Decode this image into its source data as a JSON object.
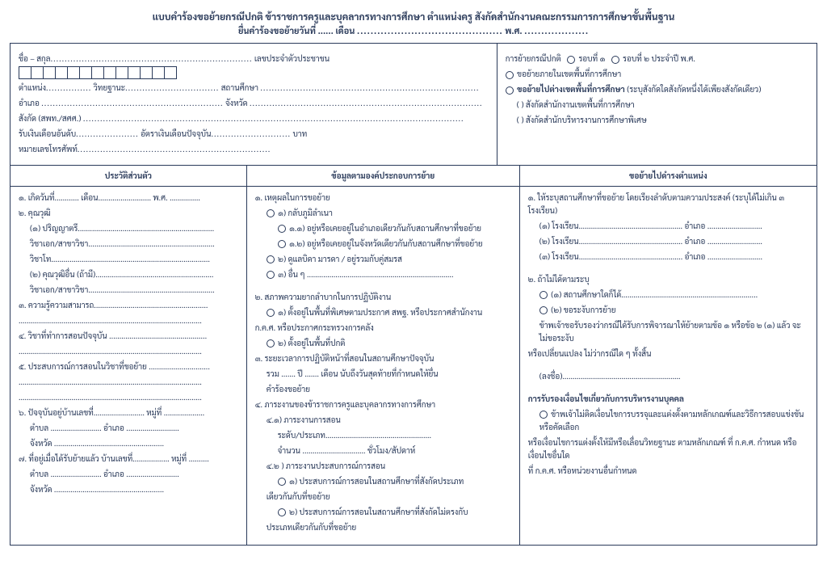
{
  "header": {
    "title": "แบบคำร้องขอย้ายกรณีปกติ ข้าราชการครูและบุคลากรทางการศึกษา ตำแหน่งครู สังกัดสำนักงานคณะกรรมการการศึกษาขั้นพื้นฐาน",
    "subtitle_pre": "ยื่นคำร้องขอย้ายวันที่ ......  เดือน ",
    "subtitle_dots": "...........................................",
    "subtitle_mid": " พ.ศ. ",
    "subtitle_dots2": "..................."
  },
  "top_left": {
    "l1a": "ชื่อ – สกุล",
    "l1b": " เลขประจำตัวประชาชน ",
    "l2a": "ตำแหน่ง",
    "l2b": " วิทยฐานะ",
    "l2c": " สถานศึกษา ",
    "l3a": "อำเภอ ",
    "l3b": " จังหวัด ",
    "l4": "สังกัด (สพท./สศศ.) ",
    "l5a": "รับเงินเดือนอันดับ",
    "l5b": " อัตราเงินเดือนปัจจุบัน",
    "l5c": "บาท",
    "l6": "หมายเลขโทรศัพท์"
  },
  "top_right": {
    "r1a": "การย้ายกรณีปกติ",
    "r1b": "รอบที่ ๑",
    "r1c": "รอบที่ ๒  ประจำปี พ.ศ.",
    "r2": "ขอย้ายภายในเขตพื้นที่การศึกษา",
    "r3": "ขอย้ายไปต่างเขตพื้นที่การศึกษา",
    "r3b": " (ระบุสังกัดใดสังกัดหนึ่งได้เพียงสังกัดเดียว)",
    "r4": "(  ) สังกัดสำนักงานเขตพื้นที่การศึกษา",
    "r5": "(  ) สังกัดสำนักบริหารงานการศึกษาพิเศษ"
  },
  "col1": {
    "head": "ประวัติส่วนตัว",
    "i1": "๑. เกิดวันที่............ เดือน.......................... พ.ศ. ...............",
    "i2": "๒. คุณวุฒิ",
    "i2a": "(๑) ปริญญาตรี...................................................................",
    "i2b": "วิชาเอก/สาขาวิชา..............................................................",
    "i2c": "วิชาโท..............................................................................",
    "i2d": "(๒) คุณวุฒิอื่น (ถ้ามี)..........................................................",
    "i2e": "วิชาเอก/สาขาวิชา..............................................................",
    "i3": "๓. ความรู้ความสามารถ........................................................",
    "i3b": "..........................................................................................",
    "i4": "๔. วิชาที่ทำการสอนปัจจุบัน ................................................",
    "i4b": "..........................................................................................",
    "i5": "๕. ประสบการณ์การสอนในวิชาที่ขอย้าย ..............................",
    "i5b": "..........................................................................................",
    "i5c": "..........................................................................................",
    "i6a": "๖. ปัจจุบันอยู่บ้านเลขที่......................... หมู่ที่ ....................",
    "i6b": "ตำบล ......................... อำเภอ ..........................",
    "i6c": "จังหวัด ......................................................",
    "i7a": "๗. ที่อยู่เมื่อได้รับย้ายแล้ว บ้านเลขที่.................. หมู่ที่ ..........",
    "i7b": "ตำบล ......................... อำเภอ ..........................",
    "i7c": "จังหวัด ......................................................"
  },
  "col2": {
    "head": "ข้อมูลตามองค์ประกอบการย้าย",
    "s1": "๑. เหตุผลในการขอย้าย",
    "s1a": "๑) กลับภูมิลำเนา",
    "s1a1": "๑.๑) อยู่หรือเคยอยู่ในอำเภอเดียวกันกับสถานศึกษาที่ขอย้าย",
    "s1a2": "๑.๒) อยู่หรือเคยอยู่ในจังหวัดเดียวกันกับสถานศึกษาที่ขอย้าย",
    "s1b": "๒) ดูแลบิดา มารดา / อยู่รวมกับคู่สมรส",
    "s1c": "๓) อื่น ๆ ........................................................................",
    "s2": "๒. สภาพความยากลำบากในการปฏิบัติงาน",
    "s2a": "๑) ตั้งอยู่ในพื้นที่พิเศษตามประกาศ สพฐ. หรือประกาศสำนักงาน",
    "s2a2": "ก.ค.ศ. หรือประกาศกระทรวงการคลัง",
    "s2b": "๒) ตั้งอยู่ในพื้นที่ปกติ",
    "s3": "๓. ระยะเวลาการปฏิบัติหน้าที่สอนในสถานศึกษาปัจจุบัน",
    "s3a": "รวม ....... ปี ....... เดือน นับถึงวันสุดท้ายที่กำหนดให้ยื่น",
    "s3b": "คำร้องขอย้าย",
    "s4": "๔. ภาระงานของข้าราชการครูและบุคลากรทางการศึกษา",
    "s4a": "๔.๑) ภาระงานการสอน",
    "s4a1": "ระดับ/ประเภท....................................................",
    "s4a2": "จำนวน ............................... ชั่วโมง/สัปดาห์",
    "s4b": "๔.๒ ) ภาระงานประสบการณ์การสอน",
    "s4b1": "๑) ประสบการณ์การสอนในสถานศึกษาที่สังกัดประเภท",
    "s4b1b": "เดียวกันกับที่ขอย้าย",
    "s4b2": "๒) ประสบการณ์การสอนในสถานศึกษาที่สังกัดไม่ตรงกับ",
    "s4b2b": "ประเภทเดียวกันกับที่ขอย้าย"
  },
  "col3": {
    "head": "ขอย้ายไปดำรงตำแหน่ง",
    "t1": "๑. ให้ระบุสถานศึกษาที่ขอย้าย โดยเรียงลำดับตามความประสงค์ (ระบุได้ไม่เกิน ๓ โรงเรียน)",
    "t1a": "(๑) โรงเรียน................................................... อำเภอ ...........................",
    "t1b": "(๒) โรงเรียน................................................... อำเภอ ...........................",
    "t1c": "(๓) โรงเรียน................................................... อำเภอ ...........................",
    "t2": "๒. ถ้าไม่ได้ตามระบุ",
    "t2a": "(๑) สถานศึกษาใดก็ได้...................................................................",
    "t2b": "(๒) ขอระงับการย้าย",
    "t3": "ข้าพเจ้าขอรับรองว่ากรณีได้รับการพิจารณาให้ย้ายตามข้อ ๑ หรือข้อ ๒ (๑) แล้ว จะไม่ขอระงับ",
    "t3b": "หรือเปลี่ยนแปลง ไม่ว่ากรณีใด ๆ ทั้งสิ้น",
    "sign": "(ลงชื่อ)..........................................................",
    "h2": "การรับรองเงื่อนไขเกี่ยวกับการบริหารงานบุคคล",
    "p1": "ข้าพเจ้าไม่ติดเงื่อนไขการบรรจุและแต่งตั้งตามหลักเกณฑ์และวิธีการสอบแข่งขันหรือคัดเลือก",
    "p2": "หรือเงื่อนไขการแต่งตั้งให้มีหรือเลื่อนวิทยฐานะ ตามหลักเกณฑ์ ที่ ก.ค.ศ. กำหนด หรือเงื่อนไขอื่นใด",
    "p3": "ที่ ก.ค.ศ. หรือหน่วยงานอื่นกำหนด"
  }
}
